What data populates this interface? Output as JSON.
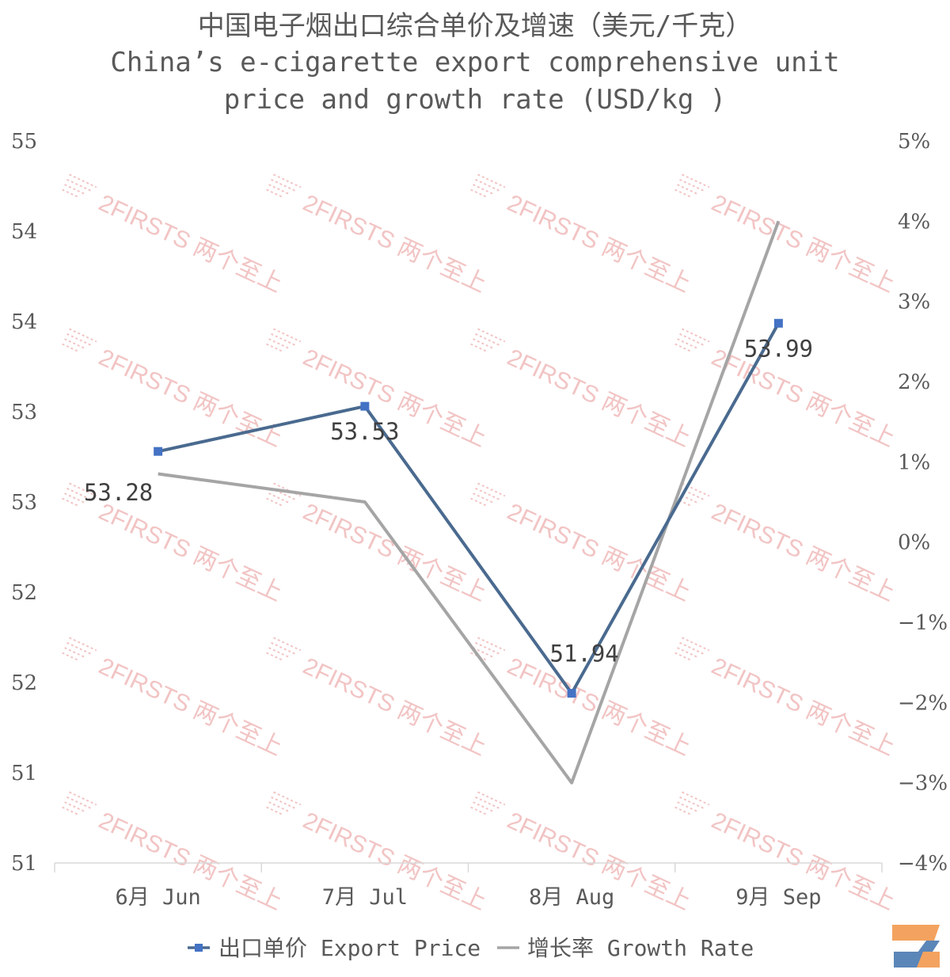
{
  "chart_data": {
    "type": "line",
    "title_zh": "中国电子烟出口综合单价及增速（美元/千克）",
    "title_en_line1": "China’s e-cigarette export comprehensive unit",
    "title_en_line2": "price and growth rate (USD/kg )",
    "categories": [
      "6月 Jun",
      "7月 Jul",
      "8月 Aug",
      "9月 Sep"
    ],
    "left_axis": {
      "ticks": [
        "55",
        "54",
        "54",
        "53",
        "53",
        "52",
        "52",
        "51",
        "51"
      ],
      "ylim": [
        51.0,
        55.0
      ]
    },
    "right_axis": {
      "ticks": [
        "5%",
        "4%",
        "3%",
        "2%",
        "1%",
        "0%",
        "−1%",
        "−2%",
        "−3%",
        "−4%"
      ],
      "ylim": [
        -4,
        5
      ]
    },
    "series": [
      {
        "name": "出口单价 Export Price",
        "axis": "left",
        "color": "#4a6a8f",
        "marker_color": "#4472c4",
        "values": [
          53.28,
          53.53,
          51.94,
          53.99
        ],
        "labels": [
          "53.28",
          "53.53",
          "51.94",
          "53.99"
        ]
      },
      {
        "name": "增长率 Growth Rate",
        "axis": "right",
        "color": "#a5a5a5",
        "values": [
          0.85,
          0.5,
          -3.0,
          4.0
        ]
      }
    ],
    "grid": false,
    "legend_position": "bottom"
  },
  "watermark": {
    "text": "2FIRSTS 两个至上"
  },
  "logo": {
    "icon": "2firsts-logo-icon"
  }
}
